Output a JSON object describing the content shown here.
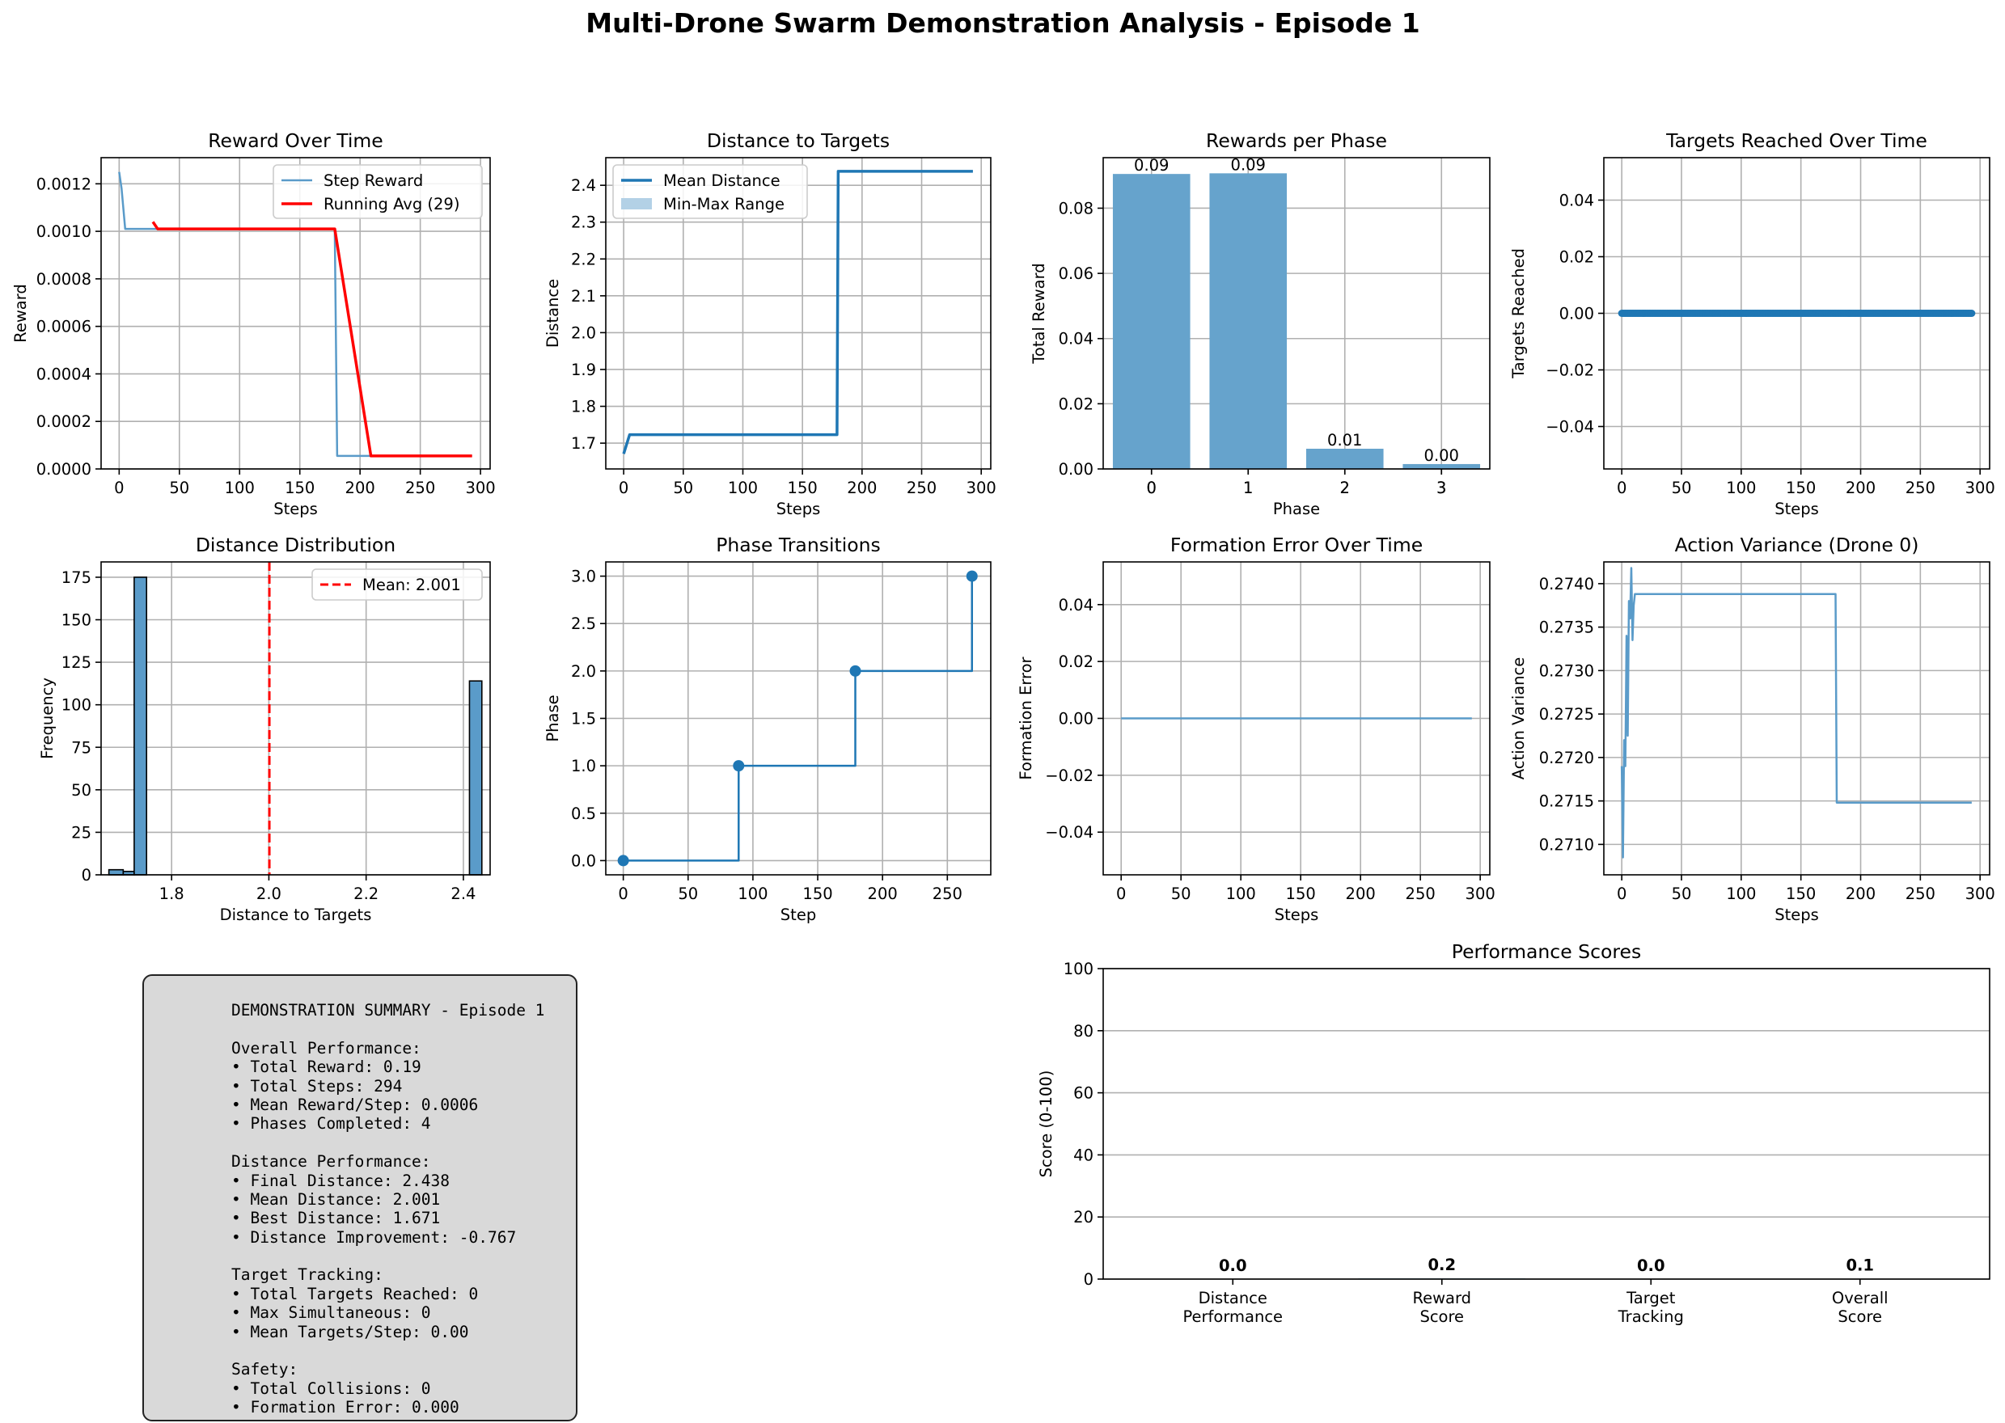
{
  "title": "Multi-Drone Swarm Demonstration Analysis - Episode 1",
  "colors": {
    "blue": "#1f77b4",
    "blue_light": "#5a9bc9",
    "bar": "#66a3cc",
    "red": "#ff0000",
    "band": "#b3d1e6"
  },
  "chart_data": [
    {
      "id": "reward",
      "type": "line",
      "title": "Reward Over Time",
      "xlabel": "Steps",
      "ylabel": "Reward",
      "xlim": [
        -15,
        308
      ],
      "ylim": [
        0,
        0.00131
      ],
      "xticks": [
        0,
        50,
        100,
        150,
        200,
        250,
        300
      ],
      "yticks": [
        0,
        0.0002,
        0.0004,
        0.0006,
        0.0008,
        0.001,
        0.0012
      ],
      "ytick_labels": [
        "0.0000",
        "0.0002",
        "0.0004",
        "0.0006",
        "0.0008",
        "0.0010",
        "0.0012"
      ],
      "grid": true,
      "legend": "top-right",
      "series": [
        {
          "name": "Step Reward",
          "color": "#5a9bc9",
          "width": 2.5,
          "x": [
            0,
            2,
            5,
            179,
            181,
            293
          ],
          "y": [
            0.00125,
            0.00118,
            0.00101,
            0.00101,
            5.5e-05,
            5.5e-05
          ]
        },
        {
          "name": "Running Avg (29)",
          "color": "#ff0000",
          "width": 3.5,
          "x": [
            28,
            32,
            179,
            209,
            293
          ],
          "y": [
            0.00104,
            0.00101,
            0.00101,
            5.5e-05,
            5.5e-05
          ]
        }
      ]
    },
    {
      "id": "distance",
      "type": "line",
      "title": "Distance to Targets",
      "xlabel": "Steps",
      "ylabel": "Distance",
      "xlim": [
        -15,
        308
      ],
      "ylim": [
        1.63,
        2.475
      ],
      "xticks": [
        0,
        50,
        100,
        150,
        200,
        250,
        300
      ],
      "yticks": [
        1.7,
        1.8,
        1.9,
        2.0,
        2.1,
        2.2,
        2.3,
        2.4
      ],
      "ytick_labels": [
        "1.7",
        "1.8",
        "1.9",
        "2.0",
        "2.1",
        "2.2",
        "2.3",
        "2.4"
      ],
      "grid": true,
      "legend": "top-left",
      "series": [
        {
          "name": "Mean Distance",
          "color": "#1f77b4",
          "width": 3.5,
          "x": [
            0,
            5,
            179,
            180,
            293
          ],
          "y": [
            1.671,
            1.723,
            1.723,
            2.438,
            2.438
          ]
        }
      ],
      "band": {
        "name": "Min-Max Range",
        "color": "#b3d1e6",
        "x": [
          0,
          5,
          179,
          180,
          293
        ],
        "ymin": [
          1.671,
          1.723,
          1.723,
          2.438,
          2.438
        ],
        "ymax": [
          1.671,
          1.723,
          1.723,
          2.438,
          2.438
        ]
      }
    },
    {
      "id": "phase_rewards",
      "type": "bar",
      "title": "Rewards per Phase",
      "xlabel": "Phase",
      "ylabel": "Total Reward",
      "xlim": [
        -0.5,
        3.5
      ],
      "ylim": [
        0,
        0.0955
      ],
      "xticks": [
        0,
        1,
        2,
        3
      ],
      "yticks": [
        0,
        0.02,
        0.04,
        0.06,
        0.08
      ],
      "ytick_labels": [
        "0.00",
        "0.02",
        "0.04",
        "0.06",
        "0.08"
      ],
      "grid": true,
      "categories": [
        "0",
        "1",
        "2",
        "3"
      ],
      "values": [
        0.0905,
        0.0907,
        0.0062,
        0.0015
      ],
      "data_labels": [
        "0.09",
        "0.09",
        "0.01",
        "0.00"
      ],
      "color": "#66a3cc"
    },
    {
      "id": "targets",
      "type": "line",
      "title": "Targets Reached Over Time",
      "xlabel": "Steps",
      "ylabel": "Targets Reached",
      "xlim": [
        -15,
        308
      ],
      "ylim": [
        -0.055,
        0.055
      ],
      "xticks": [
        0,
        50,
        100,
        150,
        200,
        250,
        300
      ],
      "yticks": [
        -0.04,
        -0.02,
        0,
        0.02,
        0.04
      ],
      "ytick_labels": [
        "−0.04",
        "−0.02",
        "0.00",
        "0.02",
        "0.04"
      ],
      "grid": true,
      "markers": true,
      "series": [
        {
          "name": "Targets Reached",
          "color": "#1f77b4",
          "width": 3,
          "x": [
            0,
            293
          ],
          "y": [
            0,
            0
          ]
        }
      ]
    },
    {
      "id": "dist_hist",
      "type": "bar",
      "title": "Distance Distribution",
      "xlabel": "Distance to Targets",
      "ylabel": "Frequency",
      "xlim": [
        1.655,
        2.455
      ],
      "ylim": [
        0,
        184
      ],
      "xticks": [
        1.8,
        2.0,
        2.2,
        2.4
      ],
      "xtick_labels": [
        "1.8",
        "2.0",
        "2.2",
        "2.4"
      ],
      "yticks": [
        0,
        25,
        50,
        75,
        100,
        125,
        150,
        175
      ],
      "ytick_labels": [
        "0",
        "25",
        "50",
        "75",
        "100",
        "125",
        "150",
        "175"
      ],
      "grid": true,
      "legend": "top-right",
      "bins": [
        {
          "x0": 1.671,
          "x1": 1.7005,
          "count": 3
        },
        {
          "x0": 1.7005,
          "x1": 1.723,
          "count": 2
        },
        {
          "x0": 1.723,
          "x1": 1.7485,
          "count": 175
        },
        {
          "x0": 2.4125,
          "x1": 2.438,
          "count": 114
        }
      ],
      "mean_line": {
        "x": 2.001,
        "label": "Mean: 2.001",
        "color": "#ff0000"
      },
      "color": "#5a9bc9"
    },
    {
      "id": "phase",
      "type": "line",
      "title": "Phase Transitions",
      "xlabel": "Step",
      "ylabel": "Phase",
      "xlim": [
        -13.5,
        283.5
      ],
      "ylim": [
        -0.15,
        3.15
      ],
      "xticks": [
        0,
        50,
        100,
        150,
        200,
        250
      ],
      "yticks": [
        0,
        0.5,
        1.0,
        1.5,
        2.0,
        2.5,
        3.0
      ],
      "ytick_labels": [
        "0.0",
        "0.5",
        "1.0",
        "1.5",
        "2.0",
        "2.5",
        "3.0"
      ],
      "grid": true,
      "series": [
        {
          "name": "Phase",
          "color": "#1f77b4",
          "width": 2.5,
          "step": true,
          "x": [
            0,
            89,
            179,
            269
          ],
          "y": [
            0,
            1,
            2,
            3
          ]
        }
      ]
    },
    {
      "id": "formation",
      "type": "line",
      "title": "Formation Error Over Time",
      "xlabel": "Steps",
      "ylabel": "Formation Error",
      "xlim": [
        -15,
        308
      ],
      "ylim": [
        -0.055,
        0.055
      ],
      "xticks": [
        0,
        50,
        100,
        150,
        200,
        250,
        300
      ],
      "yticks": [
        -0.04,
        -0.02,
        0,
        0.02,
        0.04
      ],
      "ytick_labels": [
        "−0.04",
        "−0.02",
        "0.00",
        "0.02",
        "0.04"
      ],
      "grid": true,
      "series": [
        {
          "name": "Formation Error",
          "color": "#5a9bc9",
          "width": 2.5,
          "x": [
            0,
            293
          ],
          "y": [
            0,
            0
          ]
        }
      ]
    },
    {
      "id": "action_var",
      "type": "line",
      "title": "Action Variance (Drone 0)",
      "xlabel": "Steps",
      "ylabel": "Action Variance",
      "xlim": [
        -15,
        308
      ],
      "ylim": [
        0.27065,
        0.27425
      ],
      "xticks": [
        0,
        50,
        100,
        150,
        200,
        250,
        300
      ],
      "yticks": [
        0.271,
        0.2715,
        0.272,
        0.2725,
        0.273,
        0.2735,
        0.274
      ],
      "ytick_labels": [
        "0.2710",
        "0.2715",
        "0.2720",
        "0.2725",
        "0.2730",
        "0.2735",
        "0.2740"
      ],
      "grid": true,
      "series": [
        {
          "name": "Action Variance",
          "color": "#5a9bc9",
          "width": 2.5,
          "x": [
            0,
            1,
            2,
            3,
            4,
            5,
            6,
            7,
            8,
            9,
            10,
            11,
            12,
            179,
            180,
            293
          ],
          "y": [
            0.2719,
            0.27085,
            0.2722,
            0.2719,
            0.2734,
            0.27225,
            0.2738,
            0.2736,
            0.27418,
            0.27335,
            0.27375,
            0.27388,
            0.27388,
            0.27388,
            0.27148,
            0.27148
          ]
        }
      ]
    },
    {
      "id": "scores",
      "type": "bar",
      "title": "Performance Scores",
      "ylabel": "Score (0-100)",
      "xlim": [
        -0.62,
        3.62
      ],
      "ylim": [
        0,
        100
      ],
      "yticks": [
        0,
        20,
        40,
        60,
        80,
        100
      ],
      "ytick_labels": [
        "0",
        "20",
        "40",
        "60",
        "80",
        "100"
      ],
      "grid": true,
      "gridAxis": "y",
      "categories": [
        "Distance\nPerformance",
        "Reward\nScore",
        "Target\nTracking",
        "Overall\nScore"
      ],
      "values": [
        0.0,
        0.2,
        0.0,
        0.1
      ],
      "data_labels": [
        "0.0",
        "0.2",
        "0.0",
        "0.1"
      ],
      "color": "#66a3cc"
    }
  ],
  "summary_lines": [
    "DEMONSTRATION SUMMARY - Episode 1",
    "",
    "Overall Performance:",
    "• Total Reward: 0.19",
    "• Total Steps: 294",
    "• Mean Reward/Step: 0.0006",
    "• Phases Completed: 4",
    "",
    "Distance Performance:",
    "• Final Distance: 2.438",
    "• Mean Distance: 2.001",
    "• Best Distance: 1.671",
    "• Distance Improvement: -0.767",
    "",
    "Target Tracking:",
    "• Total Targets Reached: 0",
    "• Max Simultaneous: 0",
    "• Mean Targets/Step: 0.00",
    "",
    "Safety:",
    "• Total Collisions: 0",
    "• Formation Error: 0.000"
  ]
}
